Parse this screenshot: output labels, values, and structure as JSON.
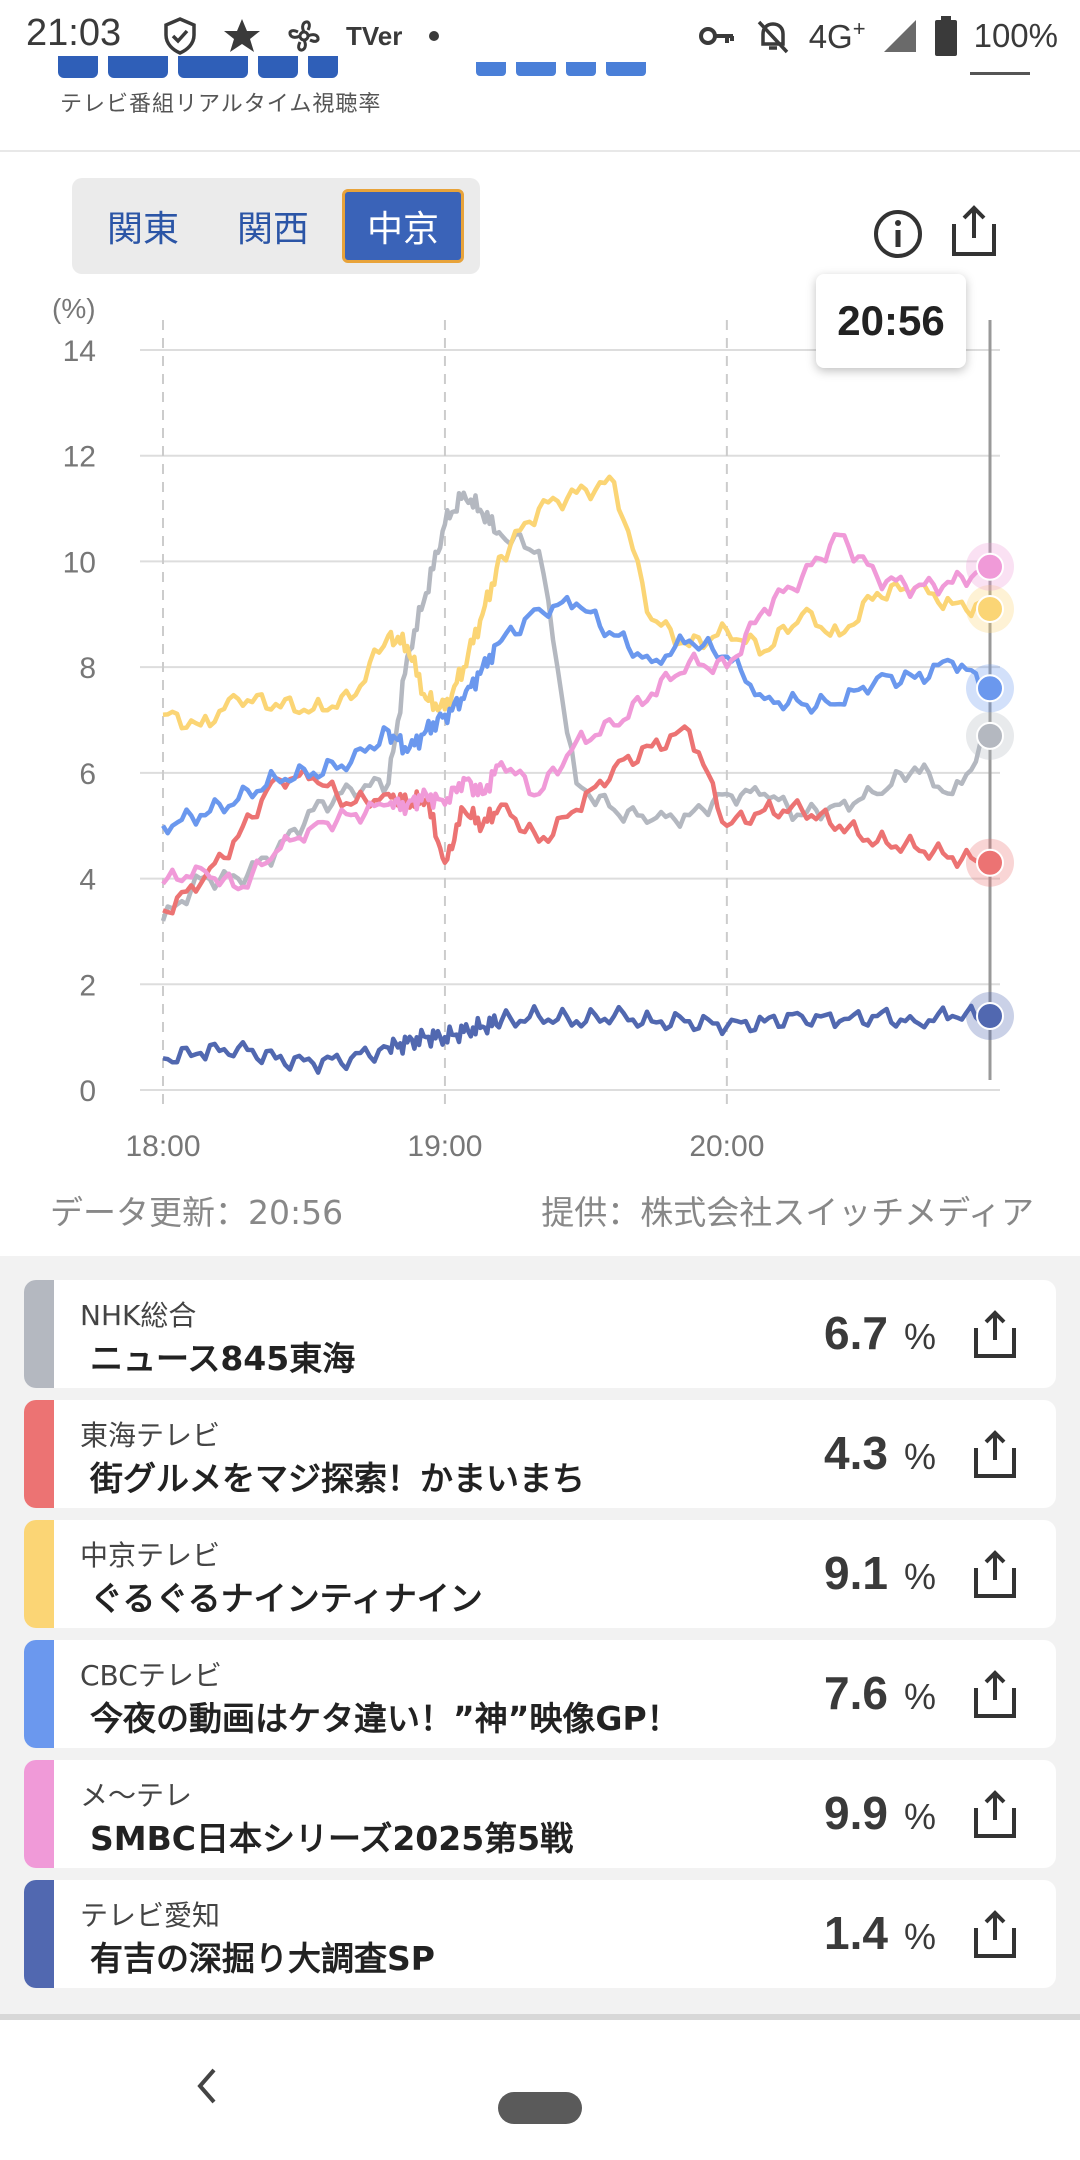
{
  "status_bar": {
    "time": "21:03",
    "network": "4G",
    "network_sup": "+",
    "battery": "100%",
    "tver_label": "TVer",
    "icons": [
      "shield-check-icon",
      "star-icon",
      "fan-icon",
      "tver-icon",
      "dot-icon",
      "key-icon",
      "bell-off-icon",
      "signal-icon",
      "battery-icon"
    ]
  },
  "header": {
    "tagline": "テレビ番組リアルタイム視聴率"
  },
  "region_tabs": [
    {
      "label": "関東",
      "active": false
    },
    {
      "label": "関西",
      "active": false
    },
    {
      "label": "中京",
      "active": true
    }
  ],
  "chart_data": {
    "type": "line",
    "ylabel": "(%)",
    "ylim": [
      0,
      14
    ],
    "yticks": [
      "0",
      "2",
      "4",
      "6",
      "8",
      "10",
      "12",
      "14"
    ],
    "xticks": [
      "18:00",
      "19:00",
      "20:00"
    ],
    "x_range_minutes": [
      0,
      176
    ],
    "x": [
      0,
      8,
      16,
      24,
      32,
      40,
      48,
      52,
      56,
      60,
      64,
      68,
      72,
      80,
      88,
      96,
      104,
      112,
      120,
      128,
      136,
      144,
      152,
      160,
      168,
      176
    ],
    "cursor_time": "20:56",
    "series": [
      {
        "name": "NHK総合",
        "color": "#b4b8c0",
        "values": [
          3.2,
          4.0,
          4.0,
          4.5,
          5.3,
          5.7,
          5.8,
          8.2,
          9.4,
          10.7,
          11.3,
          10.9,
          10.5,
          10.2,
          5.8,
          5.3,
          5.1,
          5.2,
          5.6,
          5.6,
          5.2,
          5.4,
          5.6,
          6.1,
          5.6,
          6.7
        ]
      },
      {
        "name": "東海テレビ",
        "color": "#ec7373",
        "values": [
          3.4,
          3.9,
          4.8,
          5.9,
          5.9,
          5.4,
          5.6,
          5.4,
          5.5,
          4.3,
          5.3,
          5.0,
          5.4,
          4.7,
          5.3,
          6.1,
          6.5,
          6.8,
          5.0,
          5.3,
          5.3,
          5.0,
          4.7,
          4.6,
          4.4,
          4.3
        ]
      },
      {
        "name": "中京テレビ",
        "color": "#fbd575",
        "values": [
          7.1,
          6.9,
          7.4,
          7.3,
          7.2,
          7.4,
          8.6,
          8.4,
          7.4,
          7.2,
          8.0,
          9.0,
          10.1,
          11.0,
          11.3,
          11.5,
          8.9,
          8.4,
          8.7,
          8.3,
          9.0,
          8.6,
          9.4,
          9.5,
          9.2,
          9.1
        ]
      },
      {
        "name": "CBCテレビ",
        "color": "#6b98ee",
        "values": [
          5.0,
          5.2,
          5.5,
          5.9,
          6.0,
          6.2,
          6.8,
          6.4,
          6.8,
          7.1,
          7.4,
          8.0,
          8.5,
          9.1,
          9.2,
          8.6,
          8.1,
          8.5,
          8.2,
          7.4,
          7.3,
          7.3,
          7.8,
          7.8,
          8.1,
          7.6
        ]
      },
      {
        "name": "メ〜テレ",
        "color": "#f09ad8",
        "values": [
          3.9,
          4.2,
          3.8,
          4.5,
          5.0,
          5.2,
          5.4,
          5.4,
          5.6,
          5.4,
          5.9,
          5.6,
          6.2,
          5.6,
          6.6,
          6.9,
          7.5,
          8.1,
          8.0,
          9.1,
          9.7,
          10.5,
          9.7,
          9.5,
          9.6,
          9.9
        ]
      },
      {
        "name": "テレビ愛知",
        "color": "#5168b0",
        "values": [
          0.6,
          0.7,
          0.8,
          0.6,
          0.5,
          0.6,
          0.8,
          0.9,
          1.0,
          1.0,
          1.1,
          1.2,
          1.3,
          1.4,
          1.3,
          1.4,
          1.3,
          1.3,
          1.2,
          1.3,
          1.4,
          1.3,
          1.4,
          1.3,
          1.4,
          1.4
        ]
      }
    ]
  },
  "meta": {
    "updated": "データ更新：20:56",
    "provider": "提供：株式会社スイッチメディア"
  },
  "programs": [
    {
      "station": "NHK総合",
      "title": "ニュース845東海",
      "rating": "6.7",
      "unit": "%",
      "color": "#b4b8c0"
    },
    {
      "station": "東海テレビ",
      "title": "街グルメをマジ探索！かまいまち",
      "rating": "4.3",
      "unit": "%",
      "color": "#ec7373"
    },
    {
      "station": "中京テレビ",
      "title": "ぐるぐるナインティナイン",
      "rating": "9.1",
      "unit": "%",
      "color": "#fbd575"
    },
    {
      "station": "CBCテレビ",
      "title": "今夜の動画はケタ違い！”神”映像GP！",
      "rating": "7.6",
      "unit": "%",
      "color": "#6b98ee"
    },
    {
      "station": "メ〜テレ",
      "title": "SMBC日本シリーズ2025第5戦",
      "rating": "9.9",
      "unit": "%",
      "color": "#f09ad8"
    },
    {
      "station": "テレビ愛知",
      "title": "有吉の深掘り大調査SP",
      "rating": "1.4",
      "unit": "%",
      "color": "#5168b0"
    }
  ]
}
